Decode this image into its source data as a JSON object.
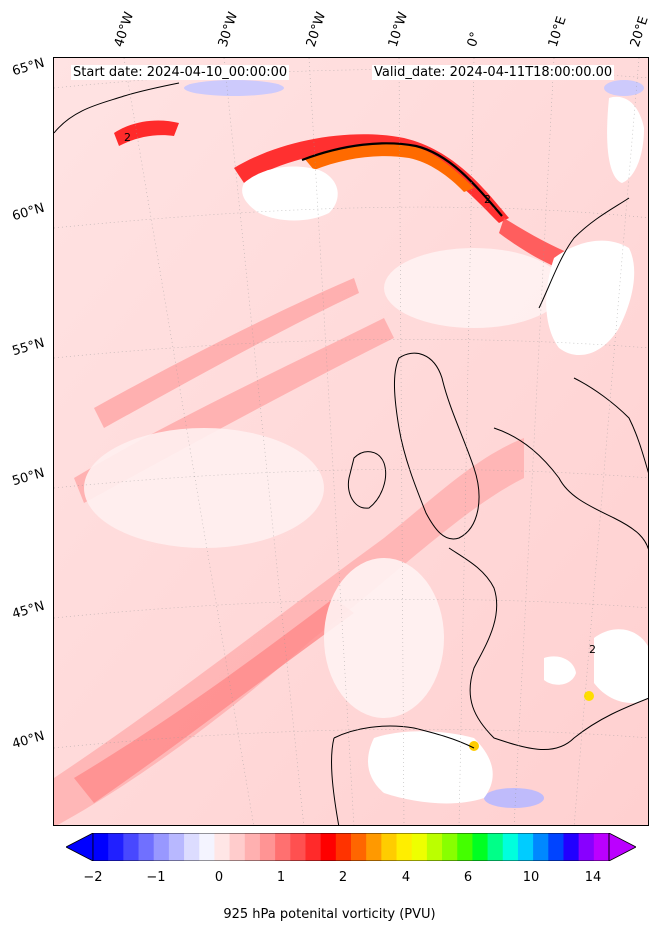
{
  "header": {
    "start_date": "Start date: 2024-04-10_00:00:00",
    "valid_date": "Valid_date: 2024-04-11T18:00:00.00"
  },
  "longitude_labels": [
    "40°W",
    "30°W",
    "20°W",
    "10°W",
    "0°",
    "10°E",
    "20°E"
  ],
  "latitude_labels": [
    "65°N",
    "60°N",
    "55°N",
    "50°N",
    "45°N",
    "40°N"
  ],
  "colorbar": {
    "label": "925 hPa potenital vorticity (PVU)",
    "tick_labels": [
      "−2",
      "−1",
      "0",
      "1",
      "2",
      "4",
      "6",
      "10",
      "14"
    ],
    "colors": [
      "#0000ff",
      "#2020ff",
      "#4848ff",
      "#7070ff",
      "#9898ff",
      "#b8b8ff",
      "#dcdcff",
      "#f4f4ff",
      "#ffe6e6",
      "#ffcccc",
      "#ffb0b0",
      "#ff9494",
      "#ff7070",
      "#ff5050",
      "#ff2a2a",
      "#ff0000",
      "#ff3300",
      "#ff6600",
      "#ff9900",
      "#ffcc00",
      "#ffee00",
      "#eeff00",
      "#bbff00",
      "#88ff00",
      "#44ff00",
      "#00ff22",
      "#00ff88",
      "#00ffdd",
      "#00ccff",
      "#0088ff",
      "#0044ff",
      "#2200ff",
      "#8800ff",
      "#bb00ff"
    ]
  },
  "chart_data": {
    "type": "heatmap",
    "title": "",
    "variable": "925 hPa potenital vorticity (PVU)",
    "colorbar_ticks": [
      -2,
      -1,
      0,
      1,
      2,
      4,
      6,
      10,
      14
    ],
    "contour_label_value": 2,
    "longitude_ticks_deg": [
      -40,
      -30,
      -20,
      -10,
      0,
      10,
      20
    ],
    "latitude_ticks_deg": [
      65,
      60,
      55,
      50,
      45,
      40
    ]
  }
}
